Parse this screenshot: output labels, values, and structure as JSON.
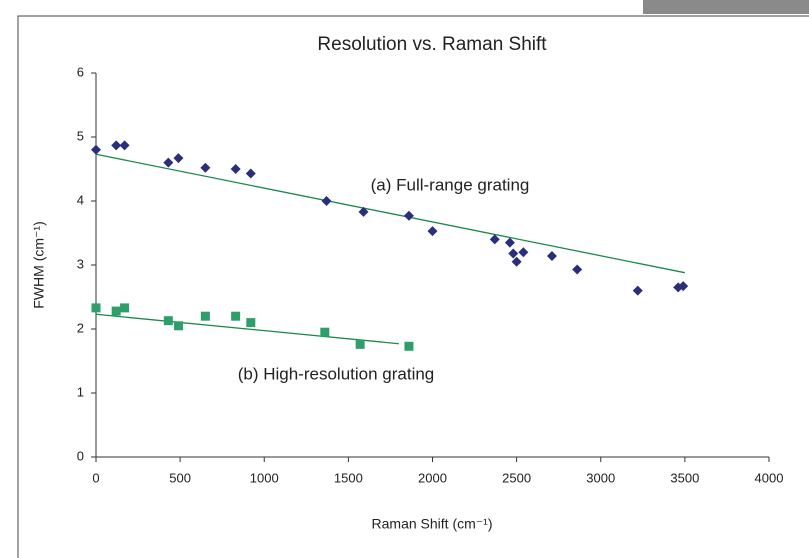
{
  "chart_data": {
    "type": "scatter",
    "title": "Resolution vs. Raman Shift",
    "x_label": "Raman Shift (cm⁻¹)",
    "y_label": "FWHM (cm⁻¹)",
    "annotations": [
      "(a) Full-range grating",
      "(b) High-resolution grating"
    ],
    "xlim": [
      0,
      4000
    ],
    "xticks": [
      0,
      500,
      1000,
      1500,
      2000,
      2500,
      3000,
      3500,
      4000
    ],
    "ylim": [
      0,
      6
    ],
    "yticks": [
      0,
      1,
      2,
      3,
      4,
      5,
      6
    ],
    "grid": false,
    "series": [
      {
        "marker": "diamond",
        "color": "#2b2f7a",
        "x": [
          0,
          120,
          170,
          430,
          490,
          650,
          830,
          920,
          1370,
          1590,
          1860,
          2000,
          2370,
          2460,
          2480,
          2500,
          2540,
          2710,
          2860,
          3220,
          3460,
          3490
        ],
        "values": [
          4.8,
          4.87,
          4.87,
          4.6,
          4.67,
          4.52,
          4.5,
          4.43,
          4.0,
          3.83,
          3.77,
          3.53,
          3.4,
          3.35,
          3.18,
          3.05,
          3.2,
          3.14,
          2.93,
          2.6,
          2.65,
          2.67
        ],
        "trend": {
          "color": "#1a8a4a",
          "x": [
            0,
            3500
          ],
          "values": [
            4.73,
            2.88
          ]
        }
      },
      {
        "marker": "square",
        "color": "#2e9e6a",
        "x": [
          0,
          120,
          170,
          430,
          490,
          650,
          830,
          920,
          1360,
          1570,
          1860
        ],
        "values": [
          2.33,
          2.28,
          2.33,
          2.13,
          2.05,
          2.2,
          2.2,
          2.1,
          1.95,
          1.76,
          1.73
        ],
        "trend": {
          "color": "#1a8a4a",
          "x": [
            0,
            1800
          ],
          "values": [
            2.23,
            1.77
          ]
        }
      }
    ]
  }
}
